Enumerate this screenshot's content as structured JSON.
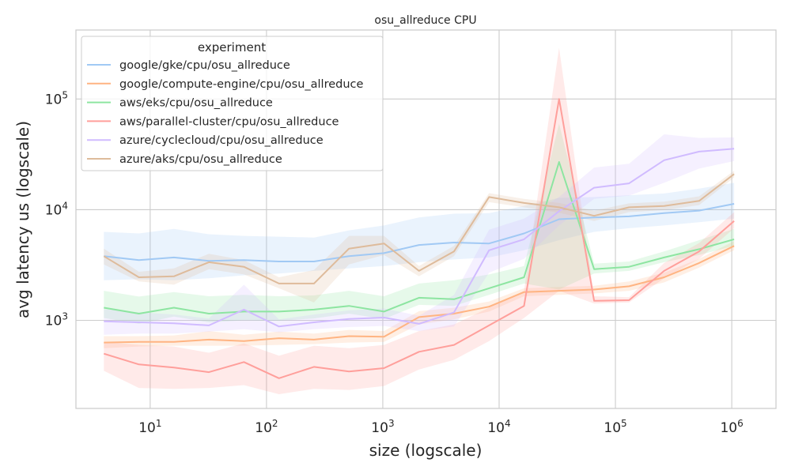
{
  "chart_data": {
    "type": "line",
    "title": "osu_allreduce CPU",
    "xlabel": "size (logscale)",
    "ylabel": "avg latency us (logscale)",
    "xscale": "log",
    "yscale": "log",
    "xlim": [
      2.3,
      2400000
    ],
    "ylim": [
      160,
      420000
    ],
    "grid": true,
    "legend": {
      "title": "experiment",
      "placement": "top-left"
    },
    "x_ticks": [
      {
        "value": 10,
        "base": "10",
        "exp": "1"
      },
      {
        "value": 100,
        "base": "10",
        "exp": "2"
      },
      {
        "value": 1000,
        "base": "10",
        "exp": "3"
      },
      {
        "value": 10000,
        "base": "10",
        "exp": "4"
      },
      {
        "value": 100000,
        "base": "10",
        "exp": "5"
      },
      {
        "value": 1000000,
        "base": "10",
        "exp": "6"
      }
    ],
    "y_ticks": [
      {
        "value": 1000,
        "base": "10",
        "exp": "3"
      },
      {
        "value": 10000,
        "base": "10",
        "exp": "4"
      },
      {
        "value": 100000,
        "base": "10",
        "exp": "5"
      }
    ],
    "x": [
      4,
      8,
      16,
      32,
      64,
      128,
      256,
      512,
      1024,
      2048,
      4096,
      8192,
      16384,
      32768,
      65536,
      131072,
      262144,
      524288,
      1048576
    ],
    "series": [
      {
        "name": "google/gke/cpu/osu_allreduce",
        "color": "#a1c9f4",
        "values": [
          3800,
          3500,
          3700,
          3450,
          3500,
          3400,
          3400,
          3800,
          4050,
          4800,
          5050,
          4950,
          6100,
          8200,
          8500,
          8700,
          9300,
          9800,
          11300
        ],
        "lower": [
          2300,
          2350,
          2300,
          2400,
          2550,
          2650,
          2800,
          2950,
          3100,
          3350,
          3550,
          3700,
          4300,
          5300,
          6300,
          6800,
          7200,
          7700,
          8300
        ],
        "upper": [
          6300,
          6100,
          6700,
          6000,
          5800,
          5700,
          5600,
          6500,
          7200,
          8500,
          9200,
          9300,
          10800,
          12800,
          13000,
          13500,
          14000,
          15500,
          17500
        ]
      },
      {
        "name": "google/compute-engine/cpu/osu_allreduce",
        "color": "#ffb482",
        "values": [
          630,
          640,
          640,
          670,
          650,
          690,
          670,
          720,
          710,
          1070,
          1150,
          1330,
          1800,
          1850,
          1900,
          2030,
          2450,
          3300,
          4700
        ],
        "lower": [
          560,
          580,
          590,
          590,
          590,
          600,
          610,
          630,
          640,
          920,
          1020,
          1200,
          1650,
          1700,
          1750,
          1850,
          2200,
          3000,
          4300
        ],
        "upper": [
          720,
          720,
          730,
          800,
          740,
          790,
          760,
          820,
          800,
          1210,
          1300,
          1480,
          1950,
          2000,
          2050,
          2250,
          2700,
          3600,
          5200
        ]
      },
      {
        "name": "aws/eks/cpu/osu_allreduce",
        "color": "#8de5a1",
        "values": [
          1300,
          1150,
          1300,
          1150,
          1200,
          1200,
          1250,
          1350,
          1200,
          1600,
          1550,
          1950,
          2450,
          27000,
          2900,
          3050,
          3700,
          4400,
          5400
        ],
        "lower": [
          1050,
          930,
          1080,
          960,
          1000,
          990,
          1040,
          1150,
          1030,
          1380,
          1350,
          1700,
          2150,
          1900,
          2650,
          2800,
          3350,
          3900,
          4700
        ],
        "upper": [
          1850,
          1640,
          1800,
          1650,
          1700,
          1650,
          1680,
          1850,
          1650,
          2150,
          2300,
          2600,
          3100,
          60000,
          3250,
          3400,
          4200,
          5300,
          6700
        ]
      },
      {
        "name": "aws/parallel-cluster/cpu/osu_allreduce",
        "color": "#ff9f9b",
        "values": [
          500,
          400,
          375,
          340,
          420,
          300,
          380,
          345,
          370,
          520,
          600,
          900,
          1350,
          100000,
          1500,
          1520,
          2800,
          4200,
          7900
        ],
        "lower": [
          350,
          245,
          240,
          245,
          260,
          215,
          240,
          235,
          255,
          360,
          440,
          650,
          1050,
          1850,
          1420,
          1450,
          2400,
          3600,
          6800
        ],
        "upper": [
          640,
          600,
          580,
          510,
          620,
          480,
          590,
          560,
          600,
          800,
          920,
          1300,
          1850,
          290000,
          1650,
          1620,
          3300,
          5000,
          9500
        ]
      },
      {
        "name": "azure/cyclecloud/cpu/osu_allreduce",
        "color": "#d0bbff",
        "values": [
          980,
          960,
          940,
          900,
          1250,
          880,
          960,
          1030,
          1060,
          930,
          1180,
          4300,
          5400,
          9700,
          15800,
          17300,
          28000,
          33500,
          35500
        ],
        "lower": [
          740,
          760,
          760,
          790,
          830,
          780,
          830,
          870,
          890,
          800,
          880,
          2700,
          3600,
          7200,
          12500,
          13400,
          17500,
          23500,
          27500
        ],
        "upper": [
          1260,
          1180,
          1130,
          1040,
          2100,
          1020,
          1130,
          1230,
          1280,
          1100,
          1700,
          6600,
          8300,
          13000,
          24000,
          26000,
          48000,
          44500,
          45000
        ]
      },
      {
        "name": "azure/aks/cpu/osu_allreduce",
        "color": "#debb9b",
        "values": [
          3800,
          2450,
          2500,
          3350,
          3050,
          2150,
          2150,
          4450,
          4950,
          2800,
          4200,
          13000,
          11500,
          10500,
          8800,
          10500,
          10800,
          12000,
          21000
        ],
        "lower": [
          3200,
          2250,
          2100,
          2900,
          2600,
          1950,
          1450,
          3200,
          3900,
          2500,
          3800,
          11700,
          10500,
          9400,
          7900,
          9500,
          9900,
          11000,
          19500
        ],
        "upper": [
          4450,
          2750,
          2950,
          4000,
          3500,
          2450,
          2850,
          5800,
          5800,
          3100,
          4700,
          14100,
          12500,
          11500,
          9800,
          11400,
          11800,
          13200,
          22500
        ]
      }
    ]
  }
}
